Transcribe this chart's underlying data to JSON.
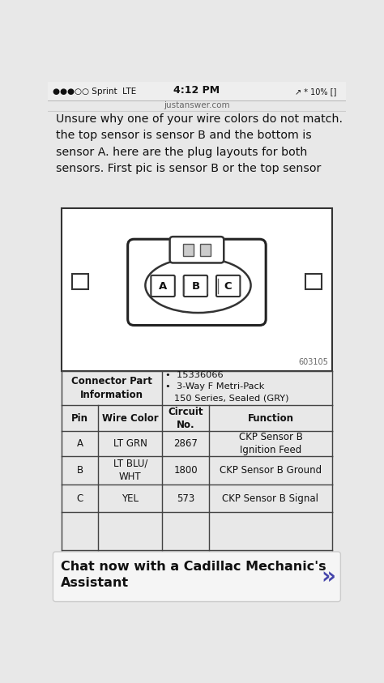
{
  "bg_color": "#e8e8e8",
  "status_bar_text": "4:12 PM",
  "status_bar_left": "●●●○○ Sprint  LTE",
  "url_bar_text": "justanswer.com",
  "body_text": "Unsure why one of your wire colors do not match.\nthe top sensor is sensor B and the bottom is\nsensor A. here are the plug layouts for both\nsensors. First pic is sensor B or the top sensor",
  "diagram_code": "603105",
  "connector_part_label": "Connector Part\nInformation",
  "connector_part_value": "•  15336066\n•  3-Way F Metri-Pack\n   150 Series, Sealed (GRY)",
  "table_headers": [
    "Pin",
    "Wire Color",
    "Circuit\nNo.",
    "Function"
  ],
  "table_rows": [
    [
      "A",
      "LT GRN",
      "2867",
      "CKP Sensor B\nIgnition Feed"
    ],
    [
      "B",
      "LT BLU/\nWHT",
      "1800",
      "CKP Sensor B Ground"
    ],
    [
      "C",
      "YEL",
      "573",
      "CKP Sensor B Signal"
    ]
  ],
  "chat_box_text": "Chat now with a Cadillac Mechanic's\nAssistant",
  "pin_labels": [
    "A",
    "B",
    "C"
  ],
  "table_bg": "#ffffff",
  "diagram_bg": "#ffffff",
  "text_color": "#111111"
}
